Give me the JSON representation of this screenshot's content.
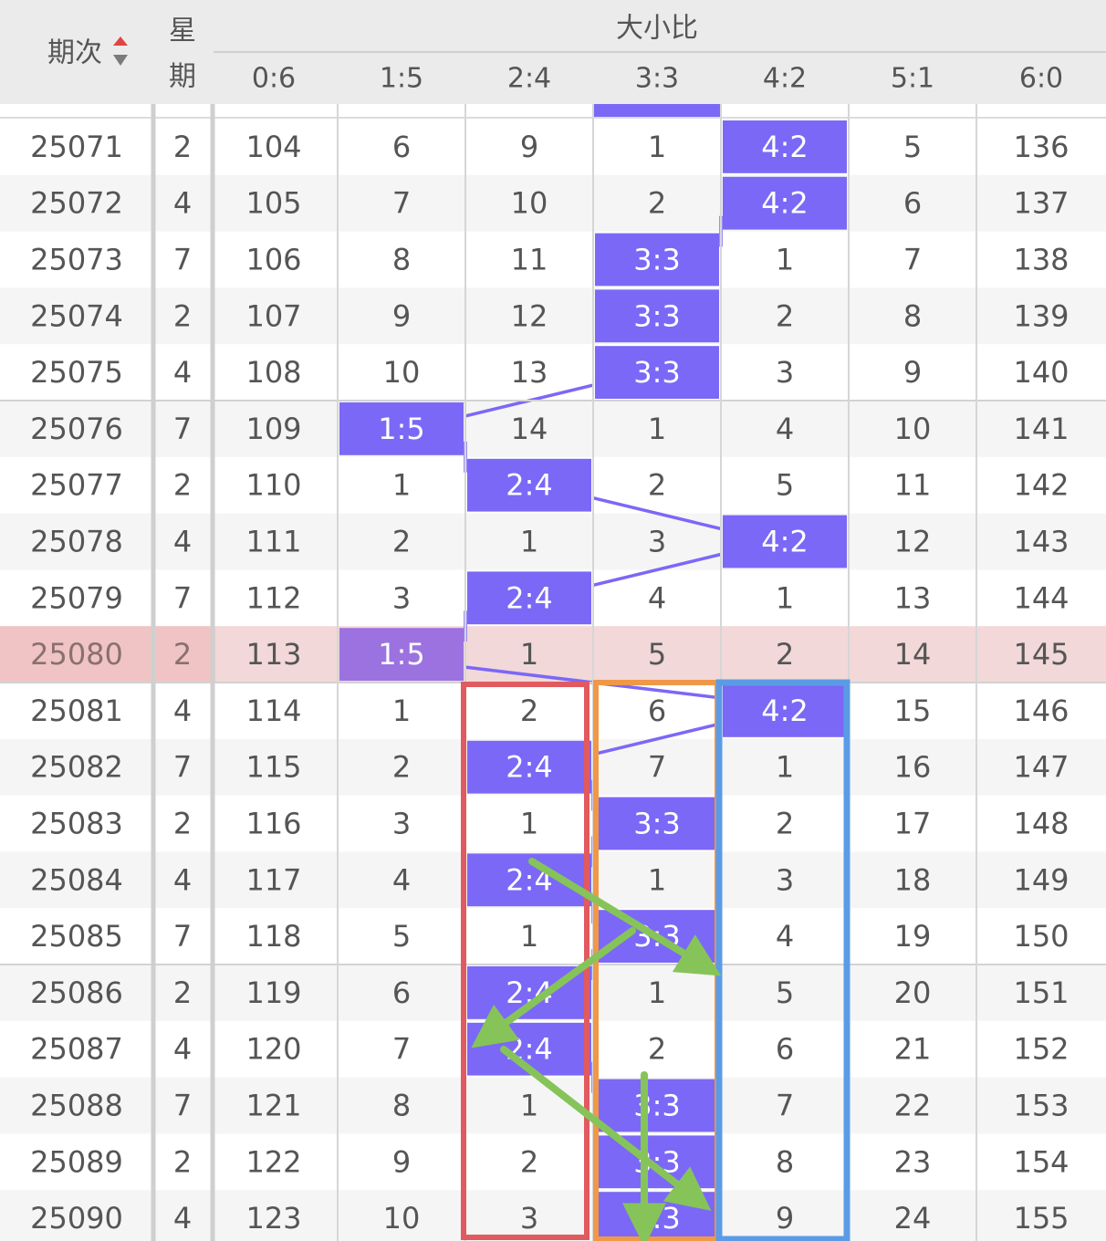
{
  "header": {
    "period_label": "期次",
    "week_label_top": "星",
    "week_label_bottom": "期",
    "group_label": "大小比",
    "ratio_columns": [
      "0:6",
      "1:5",
      "2:4",
      "3:3",
      "4:2",
      "5:1",
      "6:0"
    ]
  },
  "current_period": "25080",
  "rows": [
    {
      "period": "25071",
      "week": "2",
      "cells": [
        "104",
        "6",
        "9",
        "1",
        "4:2",
        "5",
        "136"
      ],
      "hit": 4
    },
    {
      "period": "25072",
      "week": "4",
      "cells": [
        "105",
        "7",
        "10",
        "2",
        "4:2",
        "6",
        "137"
      ],
      "hit": 4
    },
    {
      "period": "25073",
      "week": "7",
      "cells": [
        "106",
        "8",
        "11",
        "3:3",
        "1",
        "7",
        "138"
      ],
      "hit": 3
    },
    {
      "period": "25074",
      "week": "2",
      "cells": [
        "107",
        "9",
        "12",
        "3:3",
        "2",
        "8",
        "139"
      ],
      "hit": 3
    },
    {
      "period": "25075",
      "week": "4",
      "cells": [
        "108",
        "10",
        "13",
        "3:3",
        "3",
        "9",
        "140"
      ],
      "hit": 3
    },
    {
      "period": "25076",
      "week": "7",
      "cells": [
        "109",
        "1:5",
        "14",
        "1",
        "4",
        "10",
        "141"
      ],
      "hit": 1
    },
    {
      "period": "25077",
      "week": "2",
      "cells": [
        "110",
        "1",
        "2:4",
        "2",
        "5",
        "11",
        "142"
      ],
      "hit": 2
    },
    {
      "period": "25078",
      "week": "4",
      "cells": [
        "111",
        "2",
        "1",
        "3",
        "4:2",
        "12",
        "143"
      ],
      "hit": 4
    },
    {
      "period": "25079",
      "week": "7",
      "cells": [
        "112",
        "3",
        "2:4",
        "4",
        "1",
        "13",
        "144"
      ],
      "hit": 2
    },
    {
      "period": "25080",
      "week": "2",
      "cells": [
        "113",
        "1:5",
        "1",
        "5",
        "2",
        "14",
        "145"
      ],
      "hit": 1
    },
    {
      "period": "25081",
      "week": "4",
      "cells": [
        "114",
        "1",
        "2",
        "6",
        "4:2",
        "15",
        "146"
      ],
      "hit": 4
    },
    {
      "period": "25082",
      "week": "7",
      "cells": [
        "115",
        "2",
        "2:4",
        "7",
        "1",
        "16",
        "147"
      ],
      "hit": 2
    },
    {
      "period": "25083",
      "week": "2",
      "cells": [
        "116",
        "3",
        "1",
        "3:3",
        "2",
        "17",
        "148"
      ],
      "hit": 3
    },
    {
      "period": "25084",
      "week": "4",
      "cells": [
        "117",
        "4",
        "2:4",
        "1",
        "3",
        "18",
        "149"
      ],
      "hit": 2
    },
    {
      "period": "25085",
      "week": "7",
      "cells": [
        "118",
        "5",
        "1",
        "3:3",
        "4",
        "19",
        "150"
      ],
      "hit": 3
    },
    {
      "period": "25086",
      "week": "2",
      "cells": [
        "119",
        "6",
        "2:4",
        "1",
        "5",
        "20",
        "151"
      ],
      "hit": 2
    },
    {
      "period": "25087",
      "week": "4",
      "cells": [
        "120",
        "7",
        "2:4",
        "2",
        "6",
        "21",
        "152"
      ],
      "hit": 2
    },
    {
      "period": "25088",
      "week": "7",
      "cells": [
        "121",
        "8",
        "1",
        "3:3",
        "7",
        "22",
        "153"
      ],
      "hit": 3
    },
    {
      "period": "25089",
      "week": "2",
      "cells": [
        "122",
        "9",
        "2",
        "3:3",
        "8",
        "23",
        "154"
      ],
      "hit": 3
    },
    {
      "period": "25090",
      "week": "4",
      "cells": [
        "123",
        "10",
        "3",
        "3:3",
        "9",
        "24",
        "155"
      ],
      "hit": 3
    }
  ],
  "colors": {
    "hit_fill": "#7b68f6",
    "current_row_bg": "#f2d8d8",
    "current_row_left_bg": "#f0c4c4",
    "box_red": "#e05a5f",
    "box_orange": "#ef9848",
    "box_blue": "#5b9be6",
    "arrow_green": "#86c45a",
    "sort_arrow_up": "#e04444",
    "sort_arrow_down": "#7a7a7a"
  },
  "icons": {
    "sort": "sort-arrows-icon"
  }
}
